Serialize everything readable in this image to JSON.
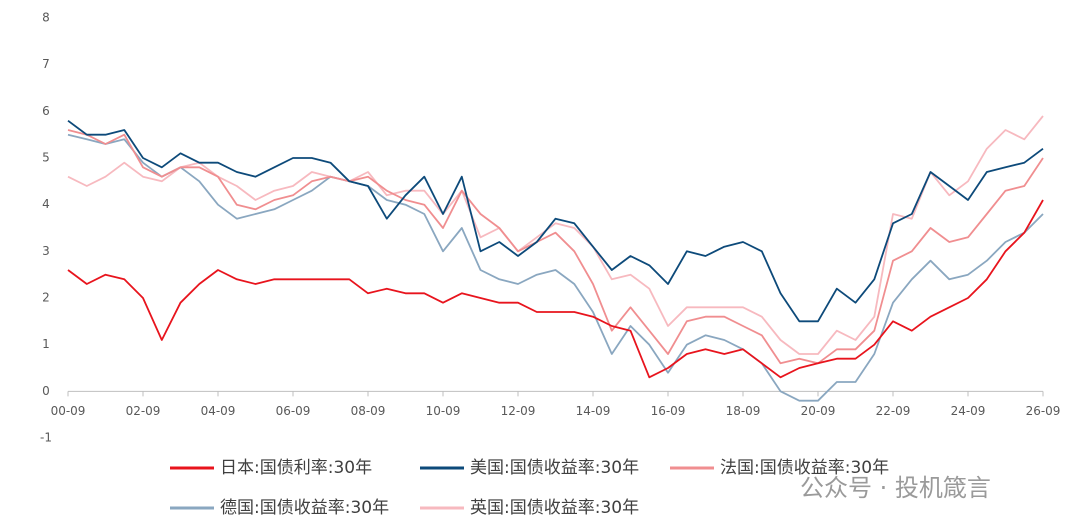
{
  "chart_data": {
    "type": "line",
    "x": [
      "00-09",
      "01-03",
      "01-09",
      "02-03",
      "02-09",
      "03-03",
      "03-09",
      "04-03",
      "04-09",
      "05-03",
      "05-09",
      "06-03",
      "06-09",
      "07-03",
      "07-09",
      "08-03",
      "08-09",
      "09-03",
      "09-09",
      "10-03",
      "10-09",
      "11-03",
      "11-09",
      "12-03",
      "12-09",
      "13-03",
      "13-09",
      "14-03",
      "14-09",
      "15-03",
      "15-09",
      "16-03",
      "16-09",
      "17-03",
      "17-09",
      "18-03",
      "18-09",
      "19-03",
      "19-09",
      "20-03",
      "20-09",
      "21-03",
      "21-09",
      "22-03",
      "22-09",
      "23-03",
      "23-09",
      "24-03",
      "24-09",
      "25-03",
      "25-09",
      "26-03",
      "26-09"
    ],
    "xticks": [
      "00-09",
      "02-09",
      "04-09",
      "06-09",
      "08-09",
      "10-09",
      "12-09",
      "14-09",
      "16-09",
      "18-09",
      "20-09",
      "22-09",
      "24-09",
      "26-09"
    ],
    "ylim": [
      -1,
      8
    ],
    "yticks": [
      -1,
      0,
      1,
      2,
      3,
      4,
      5,
      6,
      7,
      8
    ],
    "grid": false,
    "series": [
      {
        "name": "日本:国债利率:30年",
        "color": "#e8141d",
        "values": [
          2.6,
          2.3,
          2.5,
          2.4,
          2.0,
          1.1,
          1.9,
          2.3,
          2.6,
          2.4,
          2.3,
          2.4,
          2.4,
          2.4,
          2.4,
          2.4,
          2.1,
          2.2,
          2.1,
          2.1,
          1.9,
          2.1,
          2.0,
          1.9,
          1.9,
          1.7,
          1.7,
          1.7,
          1.6,
          1.4,
          1.3,
          0.3,
          0.5,
          0.8,
          0.9,
          0.8,
          0.9,
          0.6,
          0.3,
          0.5,
          0.6,
          0.7,
          0.7,
          1.0,
          1.5,
          1.3,
          1.6,
          1.8,
          2.0,
          2.4,
          3.0,
          3.4,
          4.1
        ]
      },
      {
        "name": "美国:国债收益率:30年",
        "color": "#0d4a7a",
        "values": [
          5.8,
          5.5,
          5.5,
          5.6,
          5.0,
          4.8,
          5.1,
          4.9,
          4.9,
          4.7,
          4.6,
          4.8,
          5.0,
          5.0,
          4.9,
          4.5,
          4.4,
          3.7,
          4.2,
          4.6,
          3.8,
          4.6,
          3.0,
          3.2,
          2.9,
          3.2,
          3.7,
          3.6,
          3.1,
          2.6,
          2.9,
          2.7,
          2.3,
          3.0,
          2.9,
          3.1,
          3.2,
          3.0,
          2.1,
          1.5,
          1.5,
          2.2,
          1.9,
          2.4,
          3.6,
          3.8,
          4.7,
          4.4,
          4.1,
          4.7,
          4.8,
          4.9,
          5.2
        ]
      },
      {
        "name": "法国:国债收益率:30年",
        "color": "#f08e90",
        "values": [
          5.6,
          5.5,
          5.3,
          5.5,
          4.8,
          4.6,
          4.8,
          4.8,
          4.6,
          4.0,
          3.9,
          4.1,
          4.2,
          4.5,
          4.6,
          4.5,
          4.6,
          4.3,
          4.1,
          4.0,
          3.5,
          4.3,
          3.8,
          3.5,
          3.0,
          3.2,
          3.4,
          3.0,
          2.3,
          1.3,
          1.8,
          1.3,
          0.8,
          1.5,
          1.6,
          1.6,
          1.4,
          1.2,
          0.6,
          0.7,
          0.6,
          0.9,
          0.9,
          1.3,
          2.8,
          3.0,
          3.5,
          3.2,
          3.3,
          3.8,
          4.3,
          4.4,
          5.0
        ]
      },
      {
        "name": "德国:国债收益率:30年",
        "color": "#8aa7c0",
        "values": [
          5.5,
          5.4,
          5.3,
          5.4,
          4.9,
          4.6,
          4.8,
          4.5,
          4.0,
          3.7,
          3.8,
          3.9,
          4.1,
          4.3,
          4.6,
          4.5,
          4.4,
          4.1,
          4.0,
          3.8,
          3.0,
          3.5,
          2.6,
          2.4,
          2.3,
          2.5,
          2.6,
          2.3,
          1.7,
          0.8,
          1.4,
          1.0,
          0.4,
          1.0,
          1.2,
          1.1,
          0.9,
          0.6,
          0.0,
          -0.2,
          -0.2,
          0.2,
          0.2,
          0.8,
          1.9,
          2.4,
          2.8,
          2.4,
          2.5,
          2.8,
          3.2,
          3.4,
          3.8
        ]
      },
      {
        "name": "英国:国债收益率:30年",
        "color": "#f7b9bf",
        "values": [
          4.6,
          4.4,
          4.6,
          4.9,
          4.6,
          4.5,
          4.8,
          4.9,
          4.6,
          4.4,
          4.1,
          4.3,
          4.4,
          4.7,
          4.6,
          4.5,
          4.7,
          4.2,
          4.3,
          4.3,
          3.8,
          4.3,
          3.3,
          3.5,
          3.0,
          3.3,
          3.6,
          3.5,
          3.1,
          2.4,
          2.5,
          2.2,
          1.4,
          1.8,
          1.8,
          1.8,
          1.8,
          1.6,
          1.1,
          0.8,
          0.8,
          1.3,
          1.1,
          1.6,
          3.8,
          3.7,
          4.7,
          4.2,
          4.5,
          5.2,
          5.6,
          5.4,
          5.9
        ]
      }
    ],
    "watermark": "公众号 · 投机箴言"
  }
}
